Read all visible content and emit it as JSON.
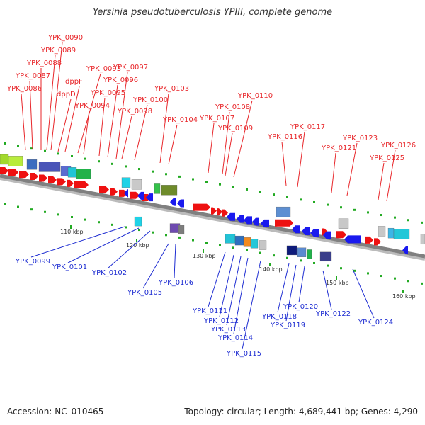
{
  "title": "Yersinia pseudotuberculosis YPIII, complete genome",
  "footer": {
    "accession": "Accession: NC_010465",
    "summary": "Topology: circular; Length: 4,689,441 bp; Genes: 4,290"
  },
  "colors": {
    "forward_strand": "#ee1111",
    "reverse_strand": "#1a1aee",
    "backbone": "#808080",
    "tick_dots": "#22aa22",
    "top_labels": "#e8262a",
    "bottom_labels": "#1f2ed2"
  },
  "ticks": [
    "110 kbp",
    "120 kbp",
    "130 kbp",
    "140 kbp",
    "150 kbp",
    "160 kbp"
  ],
  "top_labels": [
    "YPK_0086",
    "YPK_0087",
    "YPK_0088",
    "YPK_0089",
    "YPK_0090",
    "dppD",
    "dppF",
    "YPK_0093",
    "YPK_0094",
    "YPK_0095",
    "YPK_0096",
    "YPK_0097",
    "YPK_0098",
    "YPK_0100",
    "YPK_0103",
    "YPK_0104",
    "YPK_0107",
    "YPK_0108",
    "YPK_0109",
    "YPK_0110",
    "YPK_0116",
    "YPK_0117",
    "YPK_0121",
    "YPK_0123",
    "YPK_0125",
    "YPK_0126"
  ],
  "bottom_labels": [
    "YPK_0099",
    "YPK_0101",
    "YPK_0102",
    "YPK_0105",
    "YPK_0106",
    "YPK_0111",
    "YPK_0112",
    "YPK_0113",
    "YPK_0114",
    "YPK_0115",
    "YPK_0118",
    "YPK_0119",
    "YPK_0120",
    "YPK_0122",
    "YPK_0124"
  ]
}
